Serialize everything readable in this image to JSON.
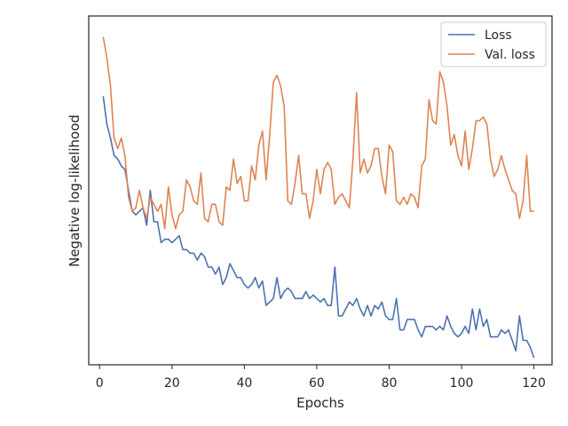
{
  "chart_data": {
    "type": "line",
    "title": "",
    "xlabel": "Epochs",
    "ylabel": "Negative log-likelihood",
    "xlim": [
      -3,
      125
    ],
    "ylim": [
      0,
      100
    ],
    "xticks": [
      0,
      20,
      40,
      60,
      80,
      100,
      120
    ],
    "y_tick_labels_shown": false,
    "grid": false,
    "legend": "top-right",
    "series": [
      {
        "name": "Loss",
        "color": "#4c72b0",
        "x": [
          1,
          2,
          3,
          4,
          5,
          6,
          7,
          8,
          9,
          10,
          11,
          12,
          13,
          14,
          15,
          16,
          17,
          18,
          19,
          20,
          21,
          22,
          23,
          24,
          25,
          26,
          27,
          28,
          29,
          30,
          31,
          32,
          33,
          34,
          35,
          36,
          37,
          38,
          39,
          40,
          41,
          42,
          43,
          44,
          45,
          46,
          47,
          48,
          49,
          50,
          51,
          52,
          53,
          54,
          55,
          56,
          57,
          58,
          59,
          60,
          61,
          62,
          63,
          64,
          65,
          66,
          67,
          68,
          69,
          70,
          71,
          72,
          73,
          74,
          75,
          76,
          77,
          78,
          79,
          80,
          81,
          82,
          83,
          84,
          85,
          86,
          87,
          88,
          89,
          90,
          91,
          92,
          93,
          94,
          95,
          96,
          97,
          98,
          99,
          100,
          101,
          102,
          103,
          104,
          105,
          106,
          107,
          108,
          109,
          110,
          111,
          112,
          113,
          114,
          115,
          116,
          117,
          118,
          119,
          120
        ],
        "values": [
          77,
          69,
          65,
          60,
          59,
          57,
          56,
          50,
          44,
          43,
          44,
          45,
          40,
          50,
          41,
          41,
          35,
          36,
          36,
          35,
          36,
          37,
          33,
          33,
          32,
          32,
          30,
          32,
          31,
          28,
          28,
          26,
          28,
          23,
          25,
          29,
          27,
          25,
          25,
          23,
          22,
          23,
          25,
          22,
          24,
          17,
          18,
          19,
          25,
          19,
          21,
          22,
          21,
          19,
          19,
          19,
          21,
          19,
          20,
          19,
          18,
          19,
          17,
          17,
          28,
          14,
          14,
          16,
          18,
          17,
          19,
          16,
          14,
          17,
          14,
          17,
          16,
          18,
          14,
          13,
          13,
          19,
          10,
          10,
          13,
          13,
          13,
          10,
          8,
          11,
          11,
          11,
          10,
          11,
          10,
          14,
          11,
          9,
          8,
          9,
          11,
          9,
          16,
          10,
          16,
          11,
          13,
          8,
          8,
          8,
          10,
          9,
          10,
          7,
          4,
          14,
          7,
          7,
          5,
          2
        ],
        "_note_values": "y in relative units, 0 = plot bottom, 100 = plot top"
      },
      {
        "name": "Val. loss",
        "color": "#dd8452",
        "x": [
          1,
          2,
          3,
          4,
          5,
          6,
          7,
          8,
          9,
          10,
          11,
          12,
          13,
          14,
          15,
          16,
          17,
          18,
          19,
          20,
          21,
          22,
          23,
          24,
          25,
          26,
          27,
          28,
          29,
          30,
          31,
          32,
          33,
          34,
          35,
          36,
          37,
          38,
          39,
          40,
          41,
          42,
          43,
          44,
          45,
          46,
          47,
          48,
          49,
          50,
          51,
          52,
          53,
          54,
          55,
          56,
          57,
          58,
          59,
          60,
          61,
          62,
          63,
          64,
          65,
          66,
          67,
          68,
          69,
          70,
          71,
          72,
          73,
          74,
          75,
          76,
          77,
          78,
          79,
          80,
          81,
          82,
          83,
          84,
          85,
          86,
          87,
          88,
          89,
          90,
          91,
          92,
          93,
          94,
          95,
          96,
          97,
          98,
          99,
          100,
          101,
          102,
          103,
          104,
          105,
          106,
          107,
          108,
          109,
          110,
          111,
          112,
          113,
          114,
          115,
          116,
          117,
          118,
          119,
          120
        ],
        "values": [
          94,
          88,
          80,
          65,
          62,
          65,
          60,
          48,
          44,
          45,
          50,
          45,
          42,
          48,
          46,
          44,
          46,
          39,
          51,
          43,
          39,
          43,
          44,
          53,
          51,
          47,
          46,
          55,
          42,
          41,
          46,
          46,
          41,
          40,
          51,
          50,
          59,
          52,
          54,
          47,
          47,
          57,
          53,
          63,
          67,
          53,
          66,
          81,
          83,
          80,
          74,
          47,
          46,
          52,
          60,
          49,
          49,
          42,
          47,
          56,
          49,
          56,
          58,
          56,
          46,
          48,
          49,
          47,
          45,
          59,
          78,
          55,
          59,
          55,
          57,
          62,
          62,
          54,
          49,
          63,
          61,
          47,
          46,
          48,
          46,
          49,
          48,
          45,
          57,
          59,
          76,
          70,
          69,
          84,
          81,
          74,
          63,
          66,
          60,
          57,
          67,
          56,
          62,
          70,
          70,
          71,
          69,
          59,
          54,
          56,
          60,
          56,
          53,
          50,
          49,
          42,
          47,
          60,
          44,
          44
        ],
        "_note_values": "y in relative units, 0 = plot bottom, 100 = plot top"
      }
    ]
  }
}
